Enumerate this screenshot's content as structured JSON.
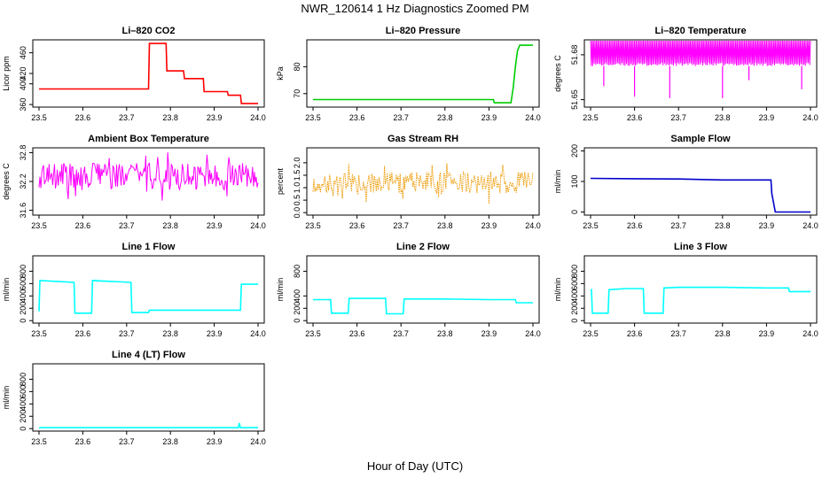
{
  "figure": {
    "title": "NWR_120614  1 Hz Diagnostics Zoomed PM",
    "xlabel": "Hour of Day (UTC)"
  },
  "chart_data": [
    {
      "type": "line",
      "title": "Li–820 CO2",
      "ylabel": "Licor ppm",
      "xlim": [
        23.5,
        24.0
      ],
      "ylim": [
        355,
        485
      ],
      "x_ticks": [
        "23.5",
        "23.6",
        "23.7",
        "23.8",
        "23.9",
        "24.0"
      ],
      "y_ticks": [
        "360",
        "400",
        "420",
        "460"
      ],
      "y_tick_values": [
        360,
        400,
        420,
        460
      ],
      "color": "#ff0000",
      "series": [
        {
          "x": [
            23.5,
            23.55,
            23.6,
            23.65,
            23.75,
            23.752,
            23.77,
            23.79,
            23.792,
            23.81,
            23.83,
            23.832,
            23.86,
            23.875,
            23.877,
            23.9,
            23.93,
            23.932,
            23.96,
            23.962,
            23.98,
            24.0
          ],
          "values": [
            390,
            390,
            390,
            390,
            390,
            478,
            478,
            478,
            425,
            425,
            425,
            410,
            410,
            410,
            385,
            385,
            385,
            378,
            378,
            362,
            362,
            362
          ]
        }
      ]
    },
    {
      "type": "line",
      "title": "Li–820 Pressure",
      "ylabel": "kPa",
      "xlim": [
        23.5,
        24.0
      ],
      "ylim": [
        65,
        90
      ],
      "x_ticks": [
        "23.5",
        "23.6",
        "23.7",
        "23.8",
        "23.9",
        "24.0"
      ],
      "y_ticks": [
        "70",
        "80"
      ],
      "y_tick_values": [
        70,
        80
      ],
      "color": "#00cc00",
      "series": [
        {
          "x": [
            23.5,
            23.6,
            23.7,
            23.8,
            23.91,
            23.912,
            23.95,
            23.955,
            23.96,
            23.965,
            23.97,
            23.975,
            24.0
          ],
          "values": [
            67.8,
            67.8,
            67.8,
            67.8,
            67.8,
            66.6,
            66.6,
            72,
            80,
            86,
            88,
            88,
            88
          ]
        }
      ]
    },
    {
      "type": "line",
      "title": "Li–820 Temperature",
      "ylabel": "degrees C",
      "xlim": [
        23.5,
        24.0
      ],
      "ylim": [
        51.645,
        51.69
      ],
      "x_ticks": [
        "23.5",
        "23.6",
        "23.7",
        "23.8",
        "23.9",
        "24.0"
      ],
      "y_ticks": [
        "51.65",
        "51.68"
      ],
      "y_tick_values": [
        51.65,
        51.68
      ],
      "color": "#ff00ff",
      "series": [
        {
          "x": [
            23.5,
            24.0
          ],
          "values": [
            51.69,
            51.69
          ]
        }
      ],
      "band": {
        "low": 51.6725,
        "high": 51.69
      },
      "spikes": [
        {
          "x": 23.53,
          "value": 51.659
        },
        {
          "x": 23.6,
          "value": 51.652
        },
        {
          "x": 23.68,
          "value": 51.651
        },
        {
          "x": 23.8,
          "value": 51.651
        },
        {
          "x": 23.86,
          "value": 51.663
        },
        {
          "x": 23.98,
          "value": 51.657
        }
      ]
    },
    {
      "type": "line",
      "title": "Ambient Box Temperature",
      "ylabel": "degrees C",
      "xlim": [
        23.5,
        24.0
      ],
      "ylim": [
        31.5,
        32.9
      ],
      "x_ticks": [
        "23.5",
        "23.6",
        "23.7",
        "23.8",
        "23.9",
        "24.0"
      ],
      "y_ticks": [
        "31.6",
        "32.2",
        "32.8"
      ],
      "y_tick_values": [
        31.6,
        32.2,
        32.8
      ],
      "color": "#ff00ff",
      "noise": {
        "center": 32.3,
        "spread": 0.28,
        "count": 240
      }
    },
    {
      "type": "line",
      "title": "Gas Stream RH",
      "ylabel": "percent",
      "xlim": [
        23.5,
        24.0
      ],
      "ylim": [
        -0.1,
        2.6
      ],
      "x_ticks": [
        "23.5",
        "23.6",
        "23.7",
        "23.8",
        "23.9",
        "24.0"
      ],
      "y_ticks": [
        "0.0",
        "0.5",
        "1.0",
        "1.5",
        "2.0"
      ],
      "y_tick_values": [
        0,
        0.5,
        1.0,
        1.5,
        2.0
      ],
      "color": "#ee9a00",
      "dotted": true,
      "noise": {
        "center": 1.2,
        "spread": 0.45,
        "count": 240
      }
    },
    {
      "type": "line",
      "title": "Sample Flow",
      "ylabel": "ml/min",
      "xlim": [
        23.5,
        24.0
      ],
      "ylim": [
        -10,
        210
      ],
      "x_ticks": [
        "23.5",
        "23.6",
        "23.7",
        "23.8",
        "23.9",
        "24.0"
      ],
      "y_ticks": [
        "0",
        "100",
        "200"
      ],
      "y_tick_values": [
        0,
        100,
        200
      ],
      "color": "#0000cc",
      "series": [
        {
          "x": [
            23.5,
            23.6,
            23.7,
            23.8,
            23.91,
            23.912,
            23.92,
            23.93,
            24.0
          ],
          "values": [
            110,
            109,
            108,
            105,
            105,
            60,
            0,
            0,
            0
          ]
        }
      ]
    },
    {
      "type": "line",
      "title": "Line 1 Flow",
      "ylabel": "ml/min",
      "xlim": [
        23.5,
        24.0
      ],
      "ylim": [
        -40,
        1050
      ],
      "x_ticks": [
        "23.5",
        "23.6",
        "23.7",
        "23.8",
        "23.9",
        "24.0"
      ],
      "y_ticks": [
        "0",
        "200",
        "400",
        "600",
        "800"
      ],
      "y_tick_values": [
        0,
        200,
        400,
        600,
        800
      ],
      "color": "#00ffff",
      "series": [
        {
          "x": [
            23.5,
            23.502,
            23.503,
            23.58,
            23.582,
            23.62,
            23.622,
            23.71,
            23.712,
            23.75,
            23.752,
            23.96,
            23.962,
            24.0
          ],
          "values": [
            150,
            650,
            650,
            620,
            120,
            120,
            650,
            620,
            130,
            130,
            170,
            170,
            590,
            590
          ]
        }
      ]
    },
    {
      "type": "line",
      "title": "Line 2 Flow",
      "ylabel": "ml/min",
      "xlim": [
        23.5,
        24.0
      ],
      "ylim": [
        -40,
        1050
      ],
      "x_ticks": [
        "23.5",
        "23.6",
        "23.7",
        "23.8",
        "23.9",
        "24.0"
      ],
      "y_ticks": [
        "0",
        "200",
        "400",
        "800"
      ],
      "y_tick_values": [
        0,
        200,
        400,
        800
      ],
      "color": "#00ffff",
      "series": [
        {
          "x": [
            23.5,
            23.54,
            23.542,
            23.58,
            23.582,
            23.665,
            23.667,
            23.705,
            23.707,
            23.8,
            23.9,
            23.96,
            23.962,
            24.0
          ],
          "values": [
            340,
            340,
            120,
            120,
            360,
            360,
            110,
            110,
            350,
            350,
            340,
            340,
            290,
            290
          ]
        }
      ]
    },
    {
      "type": "line",
      "title": "Line 3 Flow",
      "ylabel": "ml/min",
      "xlim": [
        23.5,
        24.0
      ],
      "ylim": [
        -40,
        1050
      ],
      "x_ticks": [
        "23.5",
        "23.6",
        "23.7",
        "23.8",
        "23.9",
        "24.0"
      ],
      "y_ticks": [
        "0",
        "200",
        "400",
        "600",
        "800"
      ],
      "y_tick_values": [
        0,
        200,
        400,
        600,
        800
      ],
      "color": "#00ffff",
      "series": [
        {
          "x": [
            23.5,
            23.502,
            23.504,
            23.54,
            23.542,
            23.58,
            23.62,
            23.622,
            23.665,
            23.667,
            23.7,
            23.8,
            23.9,
            23.95,
            23.952,
            24.0
          ],
          "values": [
            500,
            500,
            120,
            120,
            500,
            520,
            520,
            120,
            120,
            530,
            540,
            540,
            530,
            530,
            470,
            470
          ]
        }
      ]
    },
    {
      "type": "line",
      "title": "Line 4 (LT) Flow",
      "ylabel": "ml/min",
      "xlim": [
        23.5,
        24.0
      ],
      "ylim": [
        -40,
        1050
      ],
      "x_ticks": [
        "23.5",
        "23.6",
        "23.7",
        "23.8",
        "23.9",
        "24.0"
      ],
      "y_ticks": [
        "0",
        "200",
        "400",
        "600",
        "800"
      ],
      "y_tick_values": [
        0,
        200,
        400,
        600,
        800
      ],
      "color": "#00ffff",
      "series": [
        {
          "x": [
            23.5,
            23.6,
            23.7,
            23.8,
            23.9,
            23.955,
            23.957,
            23.96,
            24.0
          ],
          "values": [
            15,
            15,
            15,
            15,
            15,
            15,
            90,
            15,
            15
          ]
        }
      ]
    }
  ]
}
